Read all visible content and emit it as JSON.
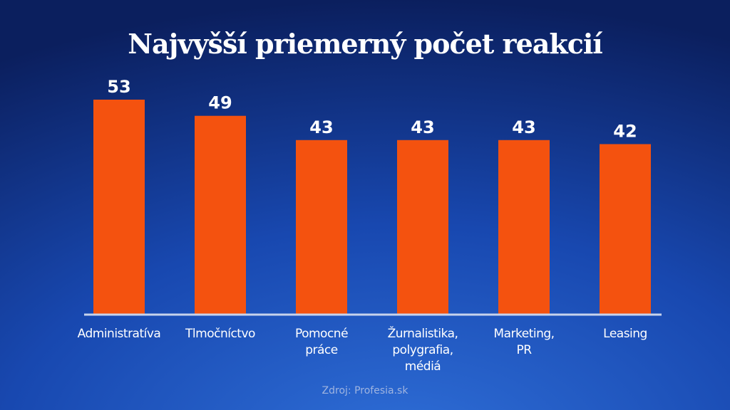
{
  "chart_data": {
    "type": "bar",
    "title": "Najvyšší priemerný počet reakcií",
    "categories": [
      [
        "Administratíva"
      ],
      [
        "Tlmočníctvo"
      ],
      [
        "Pomocné",
        "práce"
      ],
      [
        "Žurnalistika,",
        "polygrafia,",
        "médiá"
      ],
      [
        "Marketing,",
        "PR"
      ],
      [
        "Leasing"
      ]
    ],
    "values": [
      53,
      49,
      43,
      43,
      43,
      42
    ],
    "color": "#f4520f",
    "ylim": [
      0,
      53
    ],
    "source": "Zdroj: Profesia.sk"
  }
}
